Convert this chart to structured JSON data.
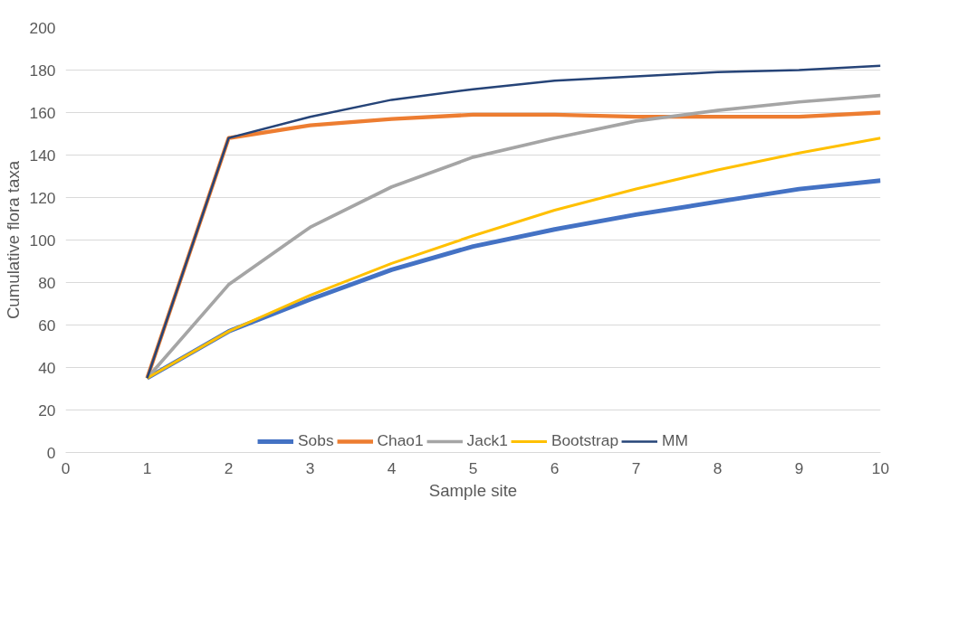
{
  "chart_data": {
    "type": "line",
    "xlabel": "Sample site",
    "ylabel": "Cumulative flora taxa",
    "x": [
      1,
      2,
      3,
      4,
      5,
      6,
      7,
      8,
      9,
      10
    ],
    "series": [
      {
        "name": "Sobs",
        "color": "#4472c4",
        "values": [
          35,
          57,
          72,
          86,
          97,
          105,
          112,
          118,
          124,
          128
        ]
      },
      {
        "name": "Chao1",
        "color": "#ed7d31",
        "values": [
          35,
          148,
          154,
          157,
          159,
          159,
          158,
          158,
          158,
          160
        ]
      },
      {
        "name": "Jack1",
        "color": "#a5a5a5",
        "values": [
          35,
          79,
          106,
          125,
          139,
          148,
          156,
          161,
          165,
          168
        ]
      },
      {
        "name": "Bootstrap",
        "color": "#ffc000",
        "values": [
          35,
          57,
          74,
          89,
          102,
          114,
          124,
          133,
          141,
          148
        ]
      },
      {
        "name": "MM",
        "color": "#264478",
        "values": [
          35,
          148,
          158,
          166,
          171,
          175,
          177,
          179,
          180,
          182
        ]
      }
    ],
    "xlim": [
      0,
      10
    ],
    "xticks": [
      0,
      1,
      2,
      3,
      4,
      5,
      6,
      7,
      8,
      9,
      10
    ],
    "ylim": [
      0,
      200
    ],
    "yticks": [
      0,
      20,
      40,
      60,
      80,
      100,
      120,
      140,
      160,
      180,
      200
    ],
    "grid": "y",
    "legend": "bottom",
    "marker": "none",
    "line_style": "solid"
  }
}
